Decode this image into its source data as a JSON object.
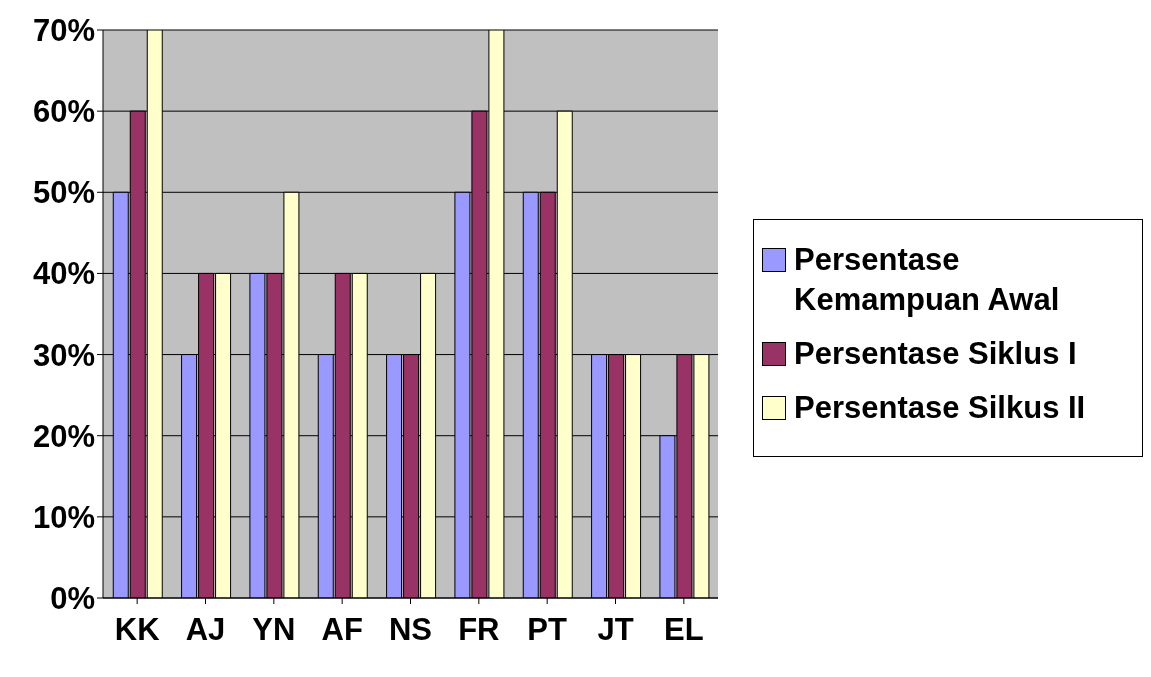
{
  "chart_data": {
    "type": "bar",
    "categories": [
      "KK",
      "AJ",
      "YN",
      "AF",
      "NS",
      "FR",
      "PT",
      "JT",
      "EL"
    ],
    "series": [
      {
        "name": "Persentase Kemampuan Awal",
        "color": "#9999ff",
        "values": [
          50,
          30,
          40,
          30,
          30,
          50,
          50,
          30,
          20
        ]
      },
      {
        "name": "Persentase Siklus I",
        "color": "#993366",
        "values": [
          60,
          40,
          40,
          40,
          30,
          60,
          50,
          30,
          30
        ]
      },
      {
        "name": "Persentase Silkus II",
        "color": "#ffffcc",
        "values": [
          70,
          40,
          50,
          40,
          40,
          70,
          60,
          30,
          30
        ]
      }
    ],
    "ylim": [
      0,
      70
    ],
    "yticks": [
      {
        "value": 0,
        "label": "0%"
      },
      {
        "value": 10,
        "label": "10%"
      },
      {
        "value": 20,
        "label": "20%"
      },
      {
        "value": 30,
        "label": "30%"
      },
      {
        "value": 40,
        "label": "40%"
      },
      {
        "value": 50,
        "label": "50%"
      },
      {
        "value": 60,
        "label": "60%"
      },
      {
        "value": 70,
        "label": "70%"
      }
    ],
    "grid": "y",
    "legend": "right"
  }
}
